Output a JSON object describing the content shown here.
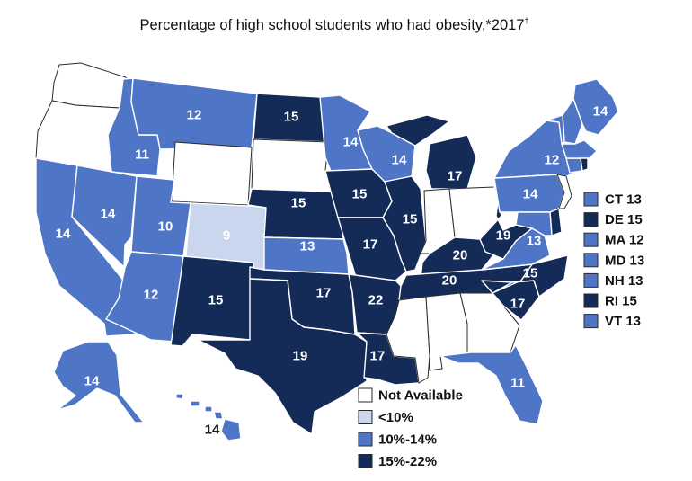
{
  "title": "Percentage of high school students who had obesity,*2017",
  "title_mark": "†",
  "colors": {
    "not_available": "#ffffff",
    "lt10": "#cad5ee",
    "mid": "#4f75c7",
    "high": "#142b57",
    "border": "#ffffff"
  },
  "states": [
    {
      "id": "WA",
      "value": null
    },
    {
      "id": "OR",
      "value": null
    },
    {
      "id": "CA",
      "value": "14"
    },
    {
      "id": "ID",
      "value": "11"
    },
    {
      "id": "NV",
      "value": "14"
    },
    {
      "id": "MT",
      "value": "12"
    },
    {
      "id": "WY",
      "value": null
    },
    {
      "id": "UT",
      "value": "10"
    },
    {
      "id": "AZ",
      "value": "12"
    },
    {
      "id": "CO",
      "value": "9"
    },
    {
      "id": "NM",
      "value": "15"
    },
    {
      "id": "ND",
      "value": "15"
    },
    {
      "id": "SD",
      "value": null
    },
    {
      "id": "NE",
      "value": "15"
    },
    {
      "id": "KS",
      "value": "13"
    },
    {
      "id": "OK",
      "value": "17"
    },
    {
      "id": "TX",
      "value": "19"
    },
    {
      "id": "MN",
      "value": "14"
    },
    {
      "id": "IA",
      "value": "15"
    },
    {
      "id": "MO",
      "value": "17"
    },
    {
      "id": "AR",
      "value": "22"
    },
    {
      "id": "LA",
      "value": "17"
    },
    {
      "id": "WI",
      "value": "14"
    },
    {
      "id": "IL",
      "value": "15"
    },
    {
      "id": "MI",
      "value": "17"
    },
    {
      "id": "IN",
      "value": null
    },
    {
      "id": "OH",
      "value": null
    },
    {
      "id": "KY",
      "value": "20"
    },
    {
      "id": "TN",
      "value": "20"
    },
    {
      "id": "MS",
      "value": null
    },
    {
      "id": "AL",
      "value": null
    },
    {
      "id": "GA",
      "value": null
    },
    {
      "id": "FL",
      "value": "11"
    },
    {
      "id": "SC",
      "value": "17"
    },
    {
      "id": "NC",
      "value": "15"
    },
    {
      "id": "VA",
      "value": "13"
    },
    {
      "id": "WV",
      "value": "19"
    },
    {
      "id": "PA",
      "value": "14"
    },
    {
      "id": "NY",
      "value": "12"
    },
    {
      "id": "NJ",
      "value": null
    },
    {
      "id": "ME",
      "value": "14"
    },
    {
      "id": "AK",
      "value": "14"
    },
    {
      "id": "HI",
      "value": "14"
    }
  ],
  "northeast": [
    {
      "abbr": "CT",
      "value": "13",
      "label": "CT 13"
    },
    {
      "abbr": "DE",
      "value": "15",
      "label": "DE 15"
    },
    {
      "abbr": "MA",
      "value": "12",
      "label": "MA 12"
    },
    {
      "abbr": "MD",
      "value": "13",
      "label": "MD 13"
    },
    {
      "abbr": "NH",
      "value": "13",
      "label": "NH 13"
    },
    {
      "abbr": "RI",
      "value": "15",
      "label": "RI 15"
    },
    {
      "abbr": "VT",
      "value": "13",
      "label": "VT 13"
    }
  ],
  "legend": [
    {
      "label": "Not Available",
      "color": "#ffffff"
    },
    {
      "label": "<10%",
      "color": "#cad5ee"
    },
    {
      "label": "10%-14%",
      "color": "#4f75c7"
    },
    {
      "label": "15%-22%",
      "color": "#142b57"
    }
  ]
}
